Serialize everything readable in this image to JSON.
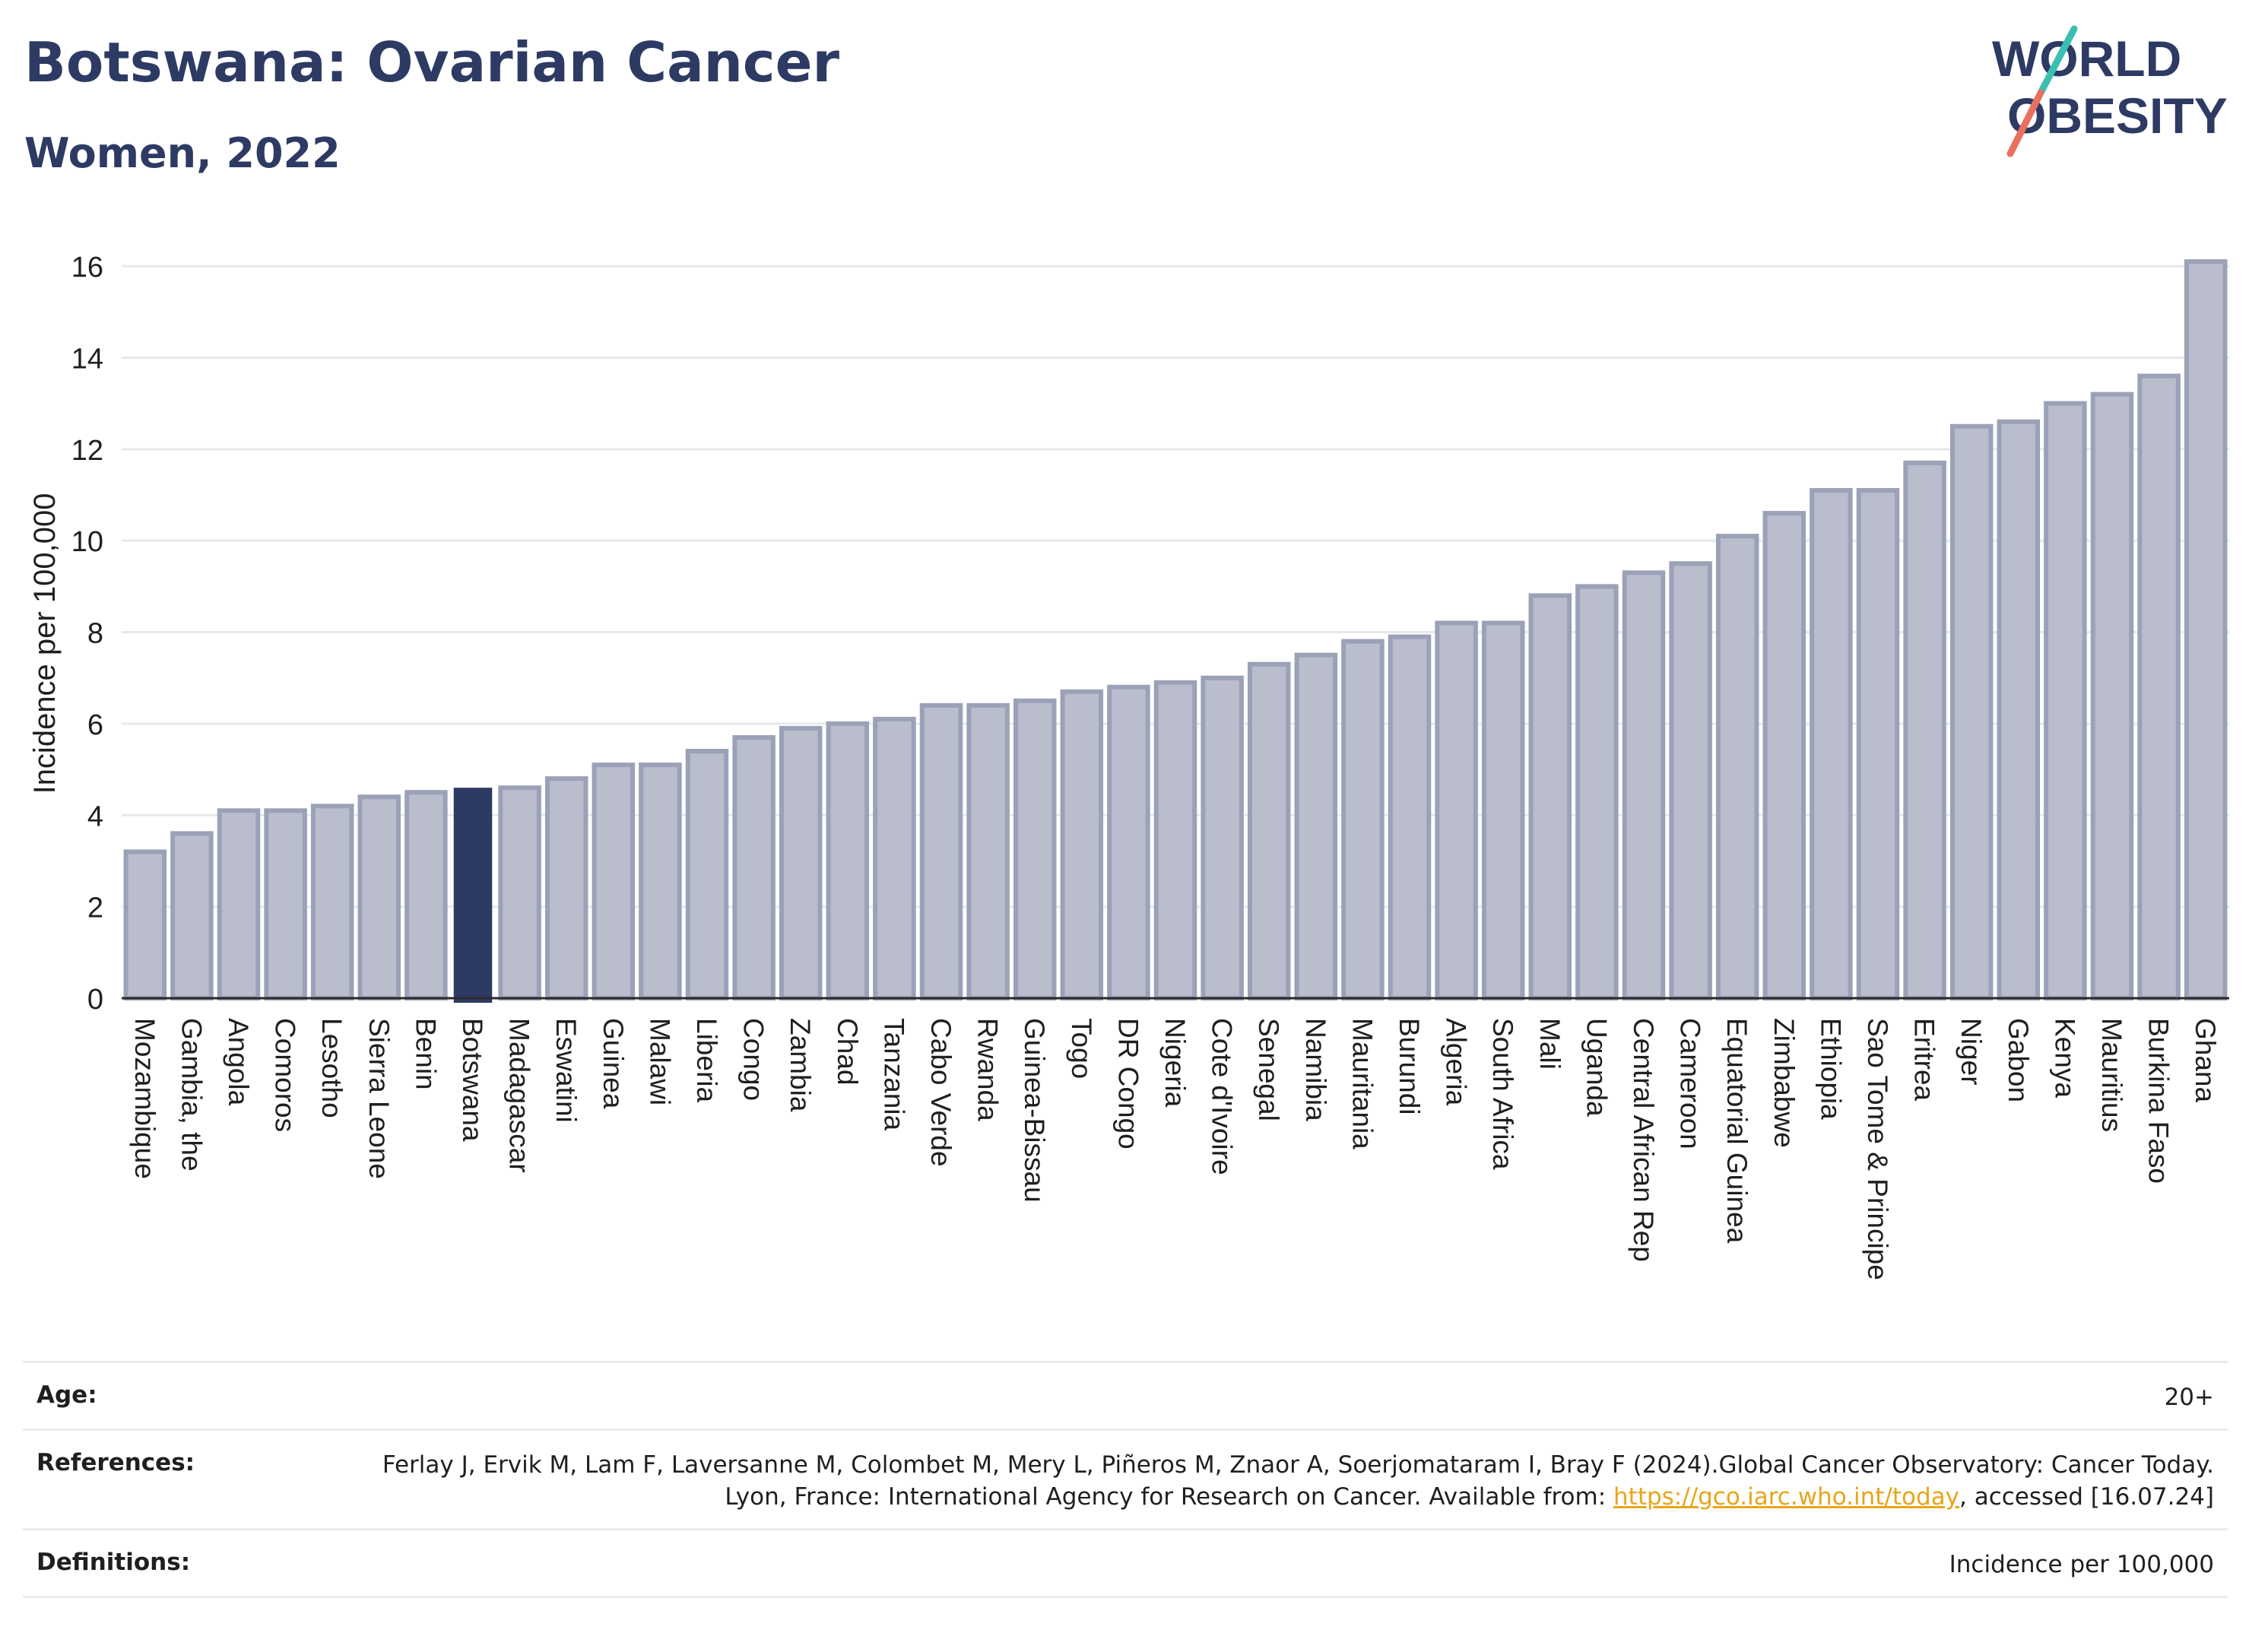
{
  "header": {
    "title": "Botswana: Ovarian Cancer",
    "subtitle": "Women, 2022"
  },
  "logo": {
    "line1": "WORLD",
    "line2": "OBESITY",
    "colors": {
      "text": "#2d3a63",
      "slash_top": "#3bbfb2",
      "slash_bottom": "#e8705f"
    }
  },
  "chart_data": {
    "type": "bar",
    "ylabel": "Incidence per 100,000",
    "ylim": [
      0,
      16.5
    ],
    "yticks": [
      0,
      2,
      4,
      6,
      8,
      10,
      12,
      14,
      16
    ],
    "grid": true,
    "highlight": "Botswana",
    "colors": {
      "bar": "#b9bdcc",
      "bar_border": "#9ba1b7",
      "highlight": "#2d3a63"
    },
    "categories": [
      "Mozambique",
      "Gambia, the",
      "Angola",
      "Comoros",
      "Lesotho",
      "Sierra Leone",
      "Benin",
      "Botswana",
      "Madagascar",
      "Eswatini",
      "Guinea",
      "Malawi",
      "Liberia",
      "Congo",
      "Zambia",
      "Chad",
      "Tanzania",
      "Cabo Verde",
      "Rwanda",
      "Guinea-Bissau",
      "Togo",
      "DR Congo",
      "Nigeria",
      "Cote d'Ivoire",
      "Senegal",
      "Namibia",
      "Mauritania",
      "Burundi",
      "Algeria",
      "South Africa",
      "Mali",
      "Uganda",
      "Central African Rep",
      "Cameroon",
      "Equatorial Guinea",
      "Zimbabwe",
      "Ethiopia",
      "Sao Tome & Principe",
      "Eritrea",
      "Niger",
      "Gabon",
      "Kenya",
      "Mauritius",
      "Burkina Faso",
      "Ghana"
    ],
    "values": [
      3.2,
      3.6,
      4.1,
      4.1,
      4.2,
      4.4,
      4.5,
      4.6,
      4.6,
      4.8,
      5.1,
      5.1,
      5.4,
      5.7,
      5.9,
      6.0,
      6.1,
      6.4,
      6.4,
      6.5,
      6.7,
      6.8,
      6.9,
      7.0,
      7.3,
      7.5,
      7.8,
      7.9,
      8.2,
      8.2,
      8.8,
      9.0,
      9.3,
      9.5,
      10.1,
      10.6,
      11.1,
      11.1,
      11.7,
      12.5,
      12.6,
      13.0,
      13.2,
      13.6,
      16.1
    ]
  },
  "footer": {
    "age_label": "Age:",
    "age_value": "20+",
    "references_label": "References:",
    "references_text": "Ferlay J, Ervik M, Lam F, Laversanne M, Colombet M, Mery L, Piñeros M, Znaor A, Soerjomataram I, Bray F (2024).Global Cancer Observatory: Cancer Today. Lyon, France: International Agency for Research on Cancer. Available from:",
    "references_link": "https://gco.iarc.who.int/today",
    "references_suffix": ", accessed [16.07.24]",
    "definitions_label": "Definitions:",
    "definitions_value": "Incidence per 100,000"
  }
}
